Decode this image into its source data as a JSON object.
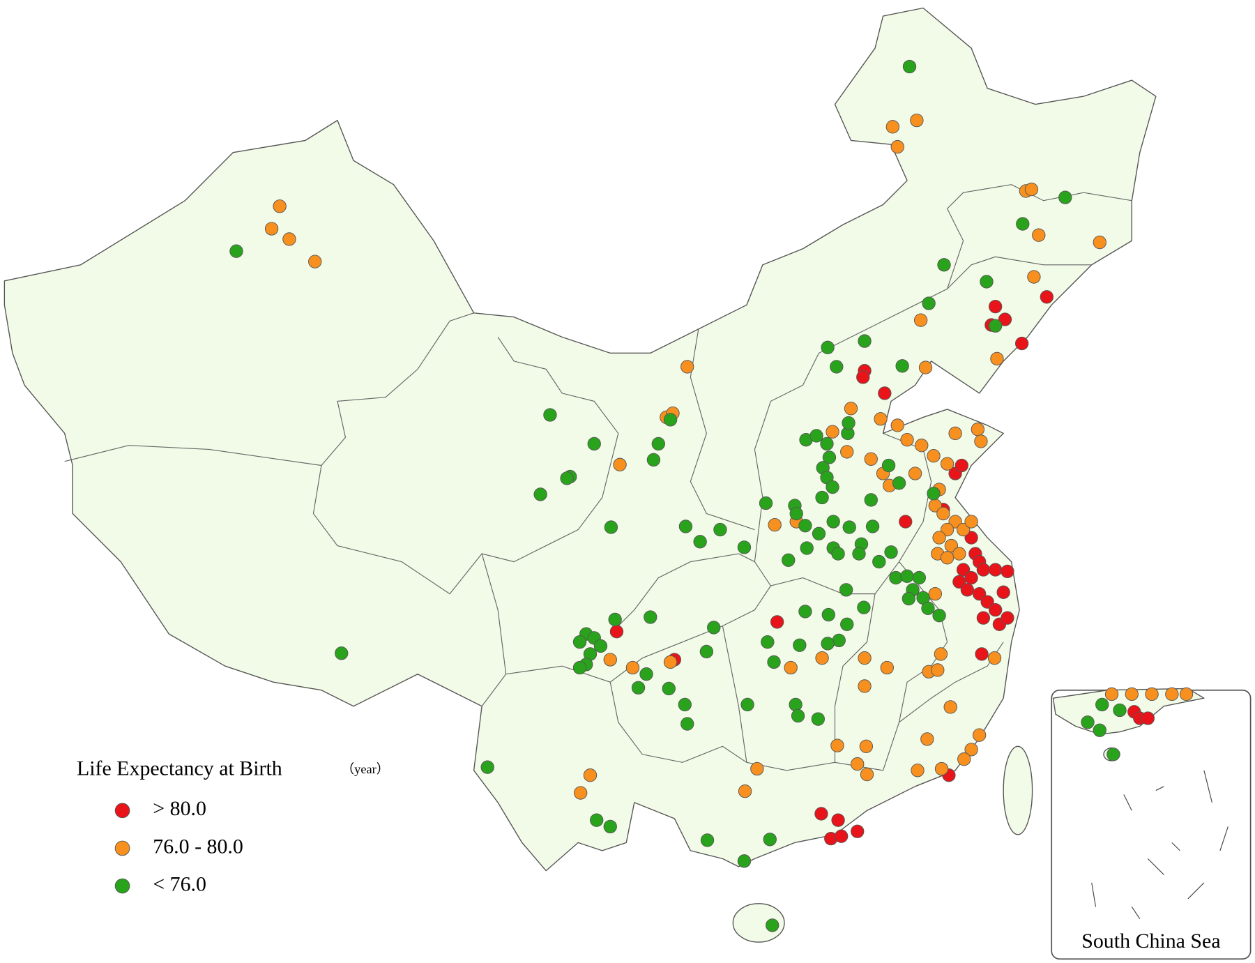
{
  "legend": {
    "title": "Life Expectancy at Birth",
    "unit": "（year）",
    "items": [
      {
        "label": "> 80.0",
        "color": "#e8141a"
      },
      {
        "label": "76.0 - 80.0",
        "color": "#f7901e"
      },
      {
        "label": "< 76.0",
        "color": "#2aa31c"
      }
    ]
  },
  "inset": {
    "label": "South China Sea"
  }
}
